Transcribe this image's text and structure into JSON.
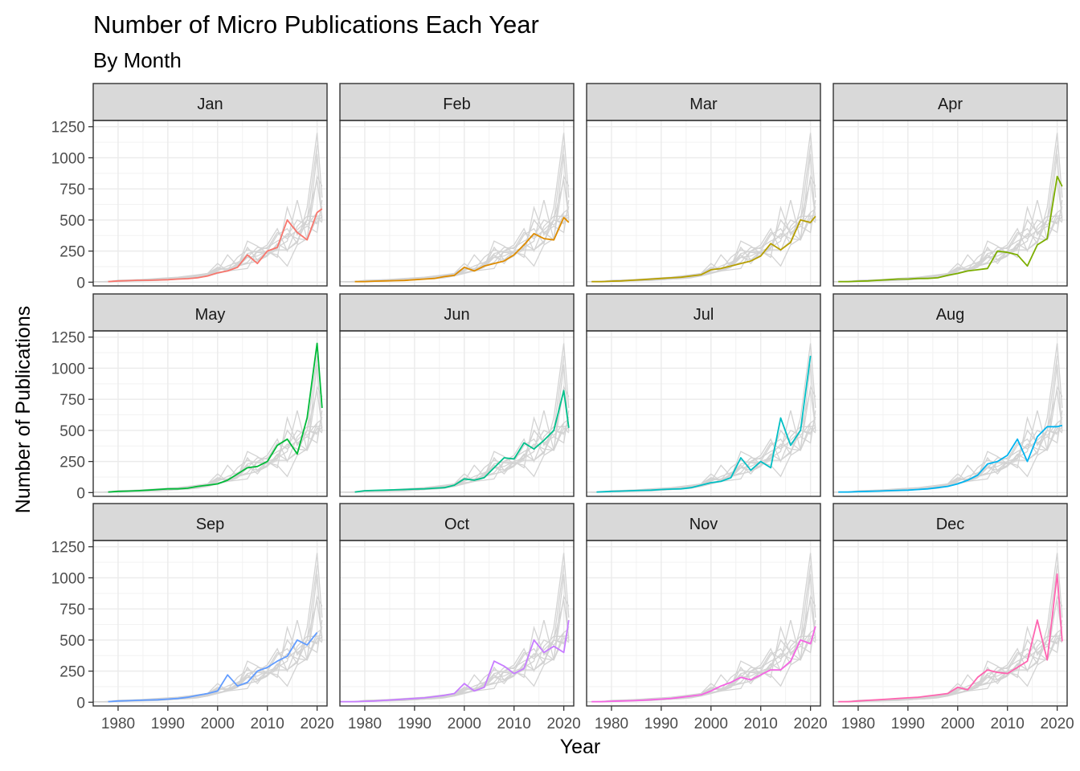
{
  "chart_data": {
    "type": "line",
    "title": "Number of Micro Publications Each Year",
    "subtitle": "By Month",
    "xlabel": "Year",
    "ylabel": "Number of Publications",
    "xlim": [
      1975,
      2022
    ],
    "ylim": [
      -30,
      1300
    ],
    "x_ticks": [
      1980,
      1990,
      2000,
      2010,
      2020
    ],
    "y_ticks": [
      0,
      250,
      500,
      750,
      1000,
      1250
    ],
    "facets": [
      {
        "month": "Jan",
        "color": "#F8766D",
        "x": [
          1978,
          1980,
          1982,
          1984,
          1986,
          1988,
          1990,
          1992,
          1994,
          1996,
          1998,
          2000,
          2002,
          2004,
          2006,
          2008,
          2010,
          2012,
          2014,
          2016,
          2018,
          2020,
          2021
        ],
        "values": [
          5,
          10,
          12,
          15,
          15,
          18,
          20,
          25,
          28,
          35,
          50,
          75,
          90,
          120,
          220,
          150,
          250,
          280,
          500,
          400,
          340,
          560,
          590
        ]
      },
      {
        "month": "Feb",
        "color": "#DE8C00",
        "x": [
          1978,
          1980,
          1982,
          1984,
          1986,
          1988,
          1990,
          1992,
          1994,
          1996,
          1998,
          2000,
          2002,
          2004,
          2006,
          2008,
          2010,
          2012,
          2014,
          2016,
          2018,
          2020,
          2021
        ],
        "values": [
          5,
          5,
          8,
          10,
          12,
          14,
          20,
          25,
          30,
          45,
          55,
          120,
          90,
          130,
          150,
          170,
          220,
          300,
          390,
          350,
          340,
          520,
          480
        ]
      },
      {
        "month": "Mar",
        "color": "#B79F00",
        "x": [
          1976,
          1978,
          1980,
          1982,
          1984,
          1986,
          1988,
          1990,
          1992,
          1994,
          1996,
          1998,
          2000,
          2002,
          2004,
          2006,
          2008,
          2010,
          2012,
          2014,
          2016,
          2018,
          2020,
          2021
        ],
        "values": [
          5,
          5,
          8,
          10,
          15,
          20,
          25,
          30,
          35,
          40,
          50,
          60,
          100,
          110,
          130,
          150,
          170,
          210,
          310,
          260,
          320,
          500,
          480,
          530
        ]
      },
      {
        "month": "Apr",
        "color": "#7CAE00",
        "x": [
          1976,
          1978,
          1980,
          1982,
          1984,
          1986,
          1988,
          1990,
          1992,
          1994,
          1996,
          1998,
          2000,
          2002,
          2004,
          2006,
          2008,
          2010,
          2012,
          2014,
          2016,
          2018,
          2020,
          2021
        ],
        "values": [
          5,
          5,
          8,
          10,
          15,
          20,
          25,
          25,
          30,
          30,
          35,
          55,
          70,
          90,
          100,
          110,
          250,
          240,
          220,
          130,
          300,
          350,
          850,
          770
        ]
      },
      {
        "month": "May",
        "color": "#00BA38",
        "x": [
          1978,
          1980,
          1982,
          1984,
          1986,
          1988,
          1990,
          1992,
          1994,
          1996,
          1998,
          2000,
          2002,
          2004,
          2006,
          2008,
          2010,
          2012,
          2014,
          2016,
          2018,
          2020,
          2021
        ],
        "values": [
          5,
          10,
          12,
          15,
          20,
          25,
          30,
          30,
          35,
          50,
          60,
          70,
          100,
          150,
          200,
          210,
          250,
          380,
          430,
          310,
          600,
          1200,
          680
        ]
      },
      {
        "month": "Jun",
        "color": "#00C08B",
        "x": [
          1978,
          1980,
          1982,
          1984,
          1986,
          1988,
          1990,
          1992,
          1994,
          1996,
          1998,
          2000,
          2002,
          2004,
          2006,
          2008,
          2010,
          2012,
          2014,
          2016,
          2018,
          2020,
          2021
        ],
        "values": [
          5,
          15,
          18,
          20,
          22,
          25,
          28,
          30,
          35,
          40,
          60,
          110,
          100,
          120,
          200,
          280,
          270,
          400,
          350,
          420,
          500,
          820,
          520
        ]
      },
      {
        "month": "Jul",
        "color": "#00BFC4",
        "x": [
          1977,
          1980,
          1982,
          1984,
          1986,
          1988,
          1990,
          1992,
          1994,
          1996,
          1998,
          2000,
          2002,
          2004,
          2006,
          2008,
          2010,
          2012,
          2014,
          2016,
          2018,
          2020
        ],
        "values": [
          5,
          10,
          12,
          15,
          18,
          20,
          25,
          28,
          30,
          40,
          60,
          80,
          90,
          120,
          280,
          180,
          250,
          200,
          600,
          380,
          500,
          1100
        ]
      },
      {
        "month": "Aug",
        "color": "#00B4F0",
        "x": [
          1976,
          1978,
          1980,
          1982,
          1984,
          1986,
          1988,
          1990,
          1992,
          1994,
          1996,
          1998,
          2000,
          2002,
          2004,
          2006,
          2008,
          2010,
          2012,
          2014,
          2016,
          2018,
          2020,
          2021
        ],
        "values": [
          5,
          5,
          8,
          10,
          12,
          15,
          18,
          20,
          25,
          30,
          40,
          50,
          70,
          100,
          140,
          230,
          250,
          300,
          430,
          250,
          450,
          530,
          530,
          540
        ]
      },
      {
        "month": "Sep",
        "color": "#619CFF",
        "x": [
          1978,
          1980,
          1982,
          1984,
          1986,
          1988,
          1990,
          1992,
          1994,
          1996,
          1998,
          2000,
          2002,
          2004,
          2006,
          2008,
          2010,
          2012,
          2014,
          2016,
          2018,
          2020
        ],
        "values": [
          5,
          10,
          12,
          15,
          18,
          20,
          25,
          30,
          40,
          55,
          70,
          90,
          220,
          130,
          160,
          250,
          280,
          330,
          370,
          500,
          460,
          560
        ]
      },
      {
        "month": "Oct",
        "color": "#C77CFF",
        "x": [
          1975,
          1978,
          1980,
          1982,
          1984,
          1986,
          1988,
          1990,
          1992,
          1994,
          1996,
          1998,
          2000,
          2002,
          2004,
          2006,
          2008,
          2010,
          2012,
          2014,
          2016,
          2018,
          2020,
          2021
        ],
        "values": [
          5,
          5,
          8,
          10,
          15,
          20,
          25,
          30,
          35,
          45,
          55,
          70,
          150,
          90,
          120,
          330,
          290,
          230,
          270,
          500,
          400,
          450,
          400,
          660
        ]
      },
      {
        "month": "Nov",
        "color": "#F564E3",
        "x": [
          1976,
          1978,
          1980,
          1982,
          1984,
          1986,
          1988,
          1990,
          1992,
          1994,
          1996,
          1998,
          2000,
          2002,
          2004,
          2006,
          2008,
          2010,
          2012,
          2014,
          2016,
          2018,
          2020,
          2021
        ],
        "values": [
          5,
          5,
          8,
          10,
          12,
          15,
          20,
          25,
          30,
          40,
          50,
          60,
          90,
          130,
          160,
          200,
          180,
          220,
          260,
          260,
          330,
          500,
          470,
          610
        ]
      },
      {
        "month": "Dec",
        "color": "#FF64B0",
        "x": [
          1976,
          1978,
          1980,
          1982,
          1984,
          1986,
          1988,
          1990,
          1992,
          1994,
          1996,
          1998,
          2000,
          2002,
          2004,
          2006,
          2008,
          2010,
          2012,
          2014,
          2016,
          2018,
          2020,
          2021
        ],
        "values": [
          5,
          5,
          10,
          15,
          20,
          25,
          30,
          35,
          40,
          50,
          60,
          70,
          120,
          100,
          200,
          260,
          240,
          230,
          280,
          330,
          660,
          340,
          1030,
          490
        ]
      }
    ]
  }
}
